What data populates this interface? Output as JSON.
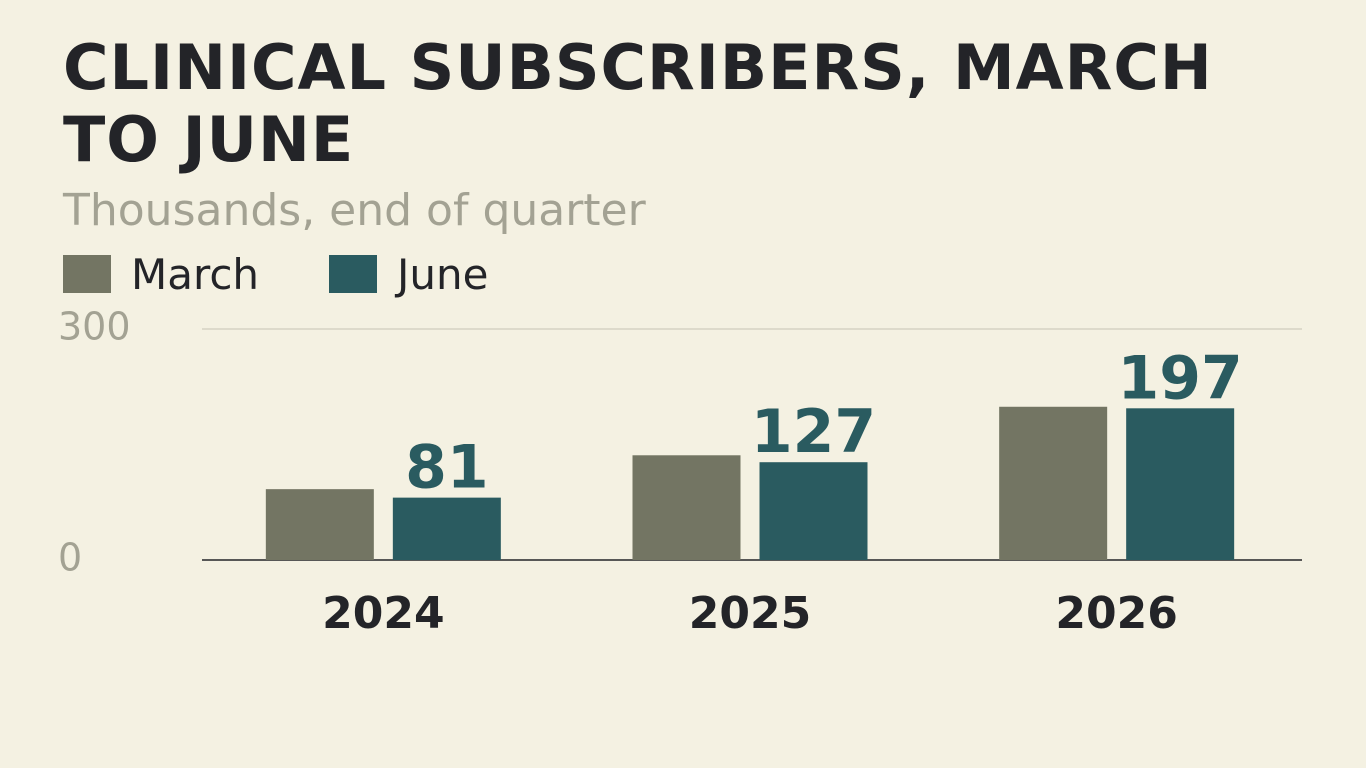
{
  "chart_data": {
    "type": "bar",
    "title": "CLINICAL SUBSCRIBERS, MARCH TO JUNE",
    "subtitle": "Thousands, end of quarter",
    "categories": [
      "2024",
      "2025",
      "2026"
    ],
    "series": [
      {
        "name": "March",
        "values": [
          92,
          136,
          199
        ],
        "color": "#737563"
      },
      {
        "name": "June",
        "values": [
          81,
          127,
          197
        ],
        "color": "#2a5b60"
      }
    ],
    "labeled_series": "June",
    "ylim": [
      0,
      300
    ],
    "yticks": [
      0,
      300
    ],
    "grid": true,
    "legend": "top-left",
    "xlabel": "",
    "ylabel": ""
  }
}
